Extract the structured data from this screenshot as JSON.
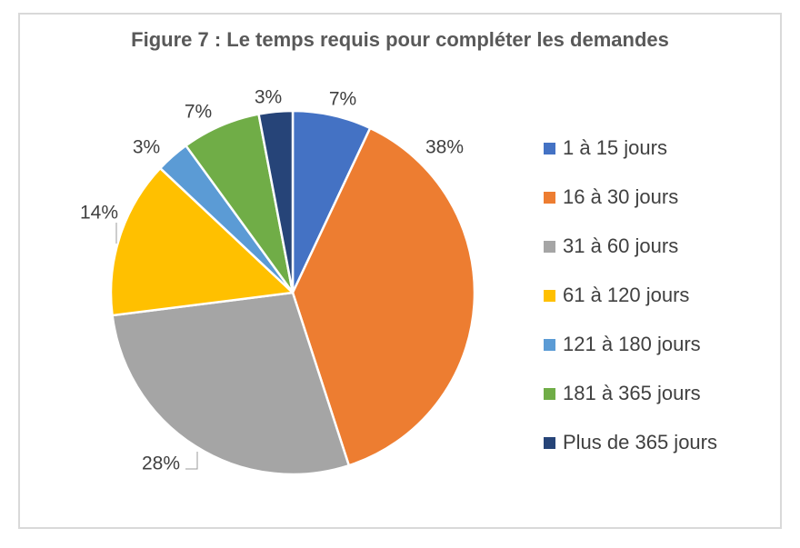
{
  "chart_data": {
    "type": "pie",
    "title": "Figure 7 : Le temps requis pour compléter les demandes",
    "legend_position": "right",
    "direction": "clockwise",
    "start_angle_deg": 0,
    "categories": [
      "1 à 15 jours",
      "16 à 30 jours",
      "31 à 60 jours",
      "61 à 120 jours",
      "121 à 180 jours",
      "181 à 365 jours",
      "Plus de 365 jours"
    ],
    "values": [
      7,
      38,
      28,
      14,
      3,
      7,
      3
    ],
    "labels": [
      "7%",
      "38%",
      "28%",
      "14%",
      "3%",
      "7%",
      "3%"
    ],
    "colors": [
      "#4472C4",
      "#ED7D31",
      "#A5A5A5",
      "#FFC000",
      "#5B9BD5",
      "#70AD47",
      "#264478"
    ]
  },
  "style_colors": {
    "title_text": "#595959",
    "label_text": "#404040",
    "frame_border": "#D9D9D9",
    "slice_separator": "#FFFFFF",
    "leader_line": "#9B9B9B",
    "background": "#FFFFFF"
  }
}
